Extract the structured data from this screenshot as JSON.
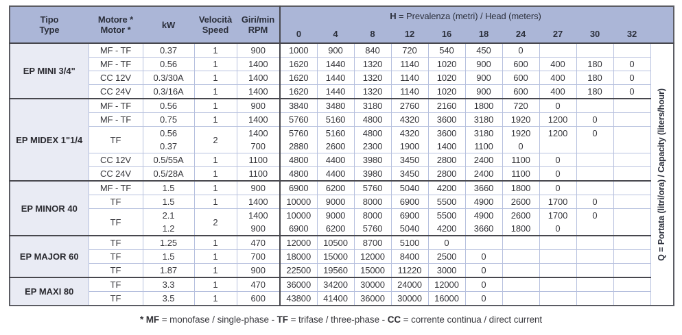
{
  "header": {
    "tipo": [
      "Tipo",
      "Type"
    ],
    "motore": [
      "Motore *",
      "Motor *"
    ],
    "kw": [
      "kW"
    ],
    "velocita": [
      "Velocità",
      "Speed"
    ],
    "giri": [
      "Giri/min",
      "RPM"
    ],
    "head_title_bold": "H",
    "head_title_rest": " = Prevalenza (metri) / Head (meters)",
    "head_cols": [
      "0",
      "4",
      "8",
      "12",
      "16",
      "18",
      "24",
      "27",
      "30",
      "32"
    ]
  },
  "q_axis": {
    "bold": "Q",
    "rest": " = Portata (litri/ora) / Capacity (liters/hour)"
  },
  "colors": {
    "header_bg": "#abb6d7",
    "section_bg": "#e9ebf4",
    "grid_light": "#b6c0de",
    "grid_dark": "#47474d",
    "outer_border": "#5b5c63"
  },
  "sections": [
    {
      "name": "EP MINI 3/4\"",
      "groups": [
        {
          "motor": "MF - TF",
          "speed": "1",
          "rows": [
            {
              "kw": "0.37",
              "rpm": "900",
              "q": [
                "1000",
                "900",
                "840",
                "720",
                "540",
                "450",
                "0",
                "",
                "",
                ""
              ]
            }
          ]
        },
        {
          "motor": "MF - TF",
          "speed": "1",
          "rows": [
            {
              "kw": "0.56",
              "rpm": "1400",
              "q": [
                "1620",
                "1440",
                "1320",
                "1140",
                "1020",
                "900",
                "600",
                "400",
                "180",
                "0"
              ]
            }
          ]
        },
        {
          "motor": "CC 12V",
          "speed": "1",
          "rows": [
            {
              "kw": "0.3/30A",
              "rpm": "1400",
              "q": [
                "1620",
                "1440",
                "1320",
                "1140",
                "1020",
                "900",
                "600",
                "400",
                "180",
                "0"
              ]
            }
          ]
        },
        {
          "motor": "CC 24V",
          "speed": "1",
          "rows": [
            {
              "kw": "0.3/16A",
              "rpm": "1400",
              "q": [
                "1620",
                "1440",
                "1320",
                "1140",
                "1020",
                "900",
                "600",
                "400",
                "180",
                "0"
              ]
            }
          ]
        }
      ]
    },
    {
      "name": "EP MIDEX 1\"1/4",
      "groups": [
        {
          "motor": "MF - TF",
          "speed": "1",
          "rows": [
            {
              "kw": "0.56",
              "rpm": "900",
              "q": [
                "3840",
                "3480",
                "3180",
                "2760",
                "2160",
                "1800",
                "720",
                "0",
                "",
                ""
              ]
            }
          ]
        },
        {
          "motor": "MF - TF",
          "speed": "1",
          "rows": [
            {
              "kw": "0.75",
              "rpm": "1400",
              "q": [
                "5760",
                "5160",
                "4800",
                "4320",
                "3600",
                "3180",
                "1920",
                "1200",
                "0",
                ""
              ]
            }
          ]
        },
        {
          "motor": "TF",
          "speed": "2",
          "rows": [
            {
              "kw": "0.56",
              "rpm": "1400",
              "q": [
                "5760",
                "5160",
                "4800",
                "4320",
                "3600",
                "3180",
                "1920",
                "1200",
                "0",
                ""
              ]
            },
            {
              "kw": "0.37",
              "rpm": "700",
              "q": [
                "2880",
                "2600",
                "2300",
                "1900",
                "1400",
                "1100",
                "0",
                "",
                "",
                ""
              ]
            }
          ]
        },
        {
          "motor": "CC 12V",
          "speed": "1",
          "rows": [
            {
              "kw": "0.5/55A",
              "rpm": "1100",
              "q": [
                "4800",
                "4400",
                "3980",
                "3450",
                "2800",
                "2400",
                "1100",
                "0",
                "",
                ""
              ]
            }
          ]
        },
        {
          "motor": "CC 24V",
          "speed": "1",
          "rows": [
            {
              "kw": "0.5/28A",
              "rpm": "1100",
              "q": [
                "4800",
                "4400",
                "3980",
                "3450",
                "2800",
                "2400",
                "1100",
                "0",
                "",
                ""
              ]
            }
          ]
        }
      ]
    },
    {
      "name": "EP MINOR 40",
      "groups": [
        {
          "motor": "MF - TF",
          "speed": "1",
          "rows": [
            {
              "kw": "1.5",
              "rpm": "900",
              "q": [
                "6900",
                "6200",
                "5760",
                "5040",
                "4200",
                "3660",
                "1800",
                "0",
                "",
                ""
              ]
            }
          ]
        },
        {
          "motor": "TF",
          "speed": "1",
          "rows": [
            {
              "kw": "1.5",
              "rpm": "1400",
              "q": [
                "10000",
                "9000",
                "8000",
                "6900",
                "5500",
                "4900",
                "2600",
                "1700",
                "0",
                ""
              ]
            }
          ]
        },
        {
          "motor": "TF",
          "speed": "2",
          "rows": [
            {
              "kw": "2.1",
              "rpm": "1400",
              "q": [
                "10000",
                "9000",
                "8000",
                "6900",
                "5500",
                "4900",
                "2600",
                "1700",
                "0",
                ""
              ]
            },
            {
              "kw": "1.2",
              "rpm": "900",
              "q": [
                "6900",
                "6200",
                "5760",
                "5040",
                "4200",
                "3660",
                "1800",
                "0",
                "",
                ""
              ]
            }
          ]
        }
      ]
    },
    {
      "name": "EP MAJOR 60",
      "groups": [
        {
          "motor": "TF",
          "speed": "1",
          "rows": [
            {
              "kw": "1.25",
              "rpm": "470",
              "q": [
                "12000",
                "10500",
                "8700",
                "5100",
                "0",
                "",
                "",
                "",
                "",
                ""
              ]
            }
          ]
        },
        {
          "motor": "TF",
          "speed": "1",
          "rows": [
            {
              "kw": "1.5",
              "rpm": "700",
              "q": [
                "18000",
                "15000",
                "12000",
                "8400",
                "2500",
                "0",
                "",
                "",
                "",
                ""
              ]
            }
          ]
        },
        {
          "motor": "TF",
          "speed": "1",
          "rows": [
            {
              "kw": "1.87",
              "rpm": "900",
              "q": [
                "22500",
                "19560",
                "15000",
                "11220",
                "3000",
                "0",
                "",
                "",
                "",
                ""
              ]
            }
          ]
        }
      ]
    },
    {
      "name": "EP MAXI 80",
      "groups": [
        {
          "motor": "TF",
          "speed": "1",
          "rows": [
            {
              "kw": "3.3",
              "rpm": "470",
              "q": [
                "36000",
                "34200",
                "30000",
                "24000",
                "12000",
                "0",
                "",
                "",
                "",
                ""
              ]
            }
          ]
        },
        {
          "motor": "TF",
          "speed": "1",
          "rows": [
            {
              "kw": "3.5",
              "rpm": "600",
              "q": [
                "43800",
                "41400",
                "36000",
                "30000",
                "16000",
                "0",
                "",
                "",
                "",
                ""
              ]
            }
          ]
        }
      ]
    }
  ],
  "footnote_segments": [
    {
      "b": "* MF"
    },
    {
      "t": " = monofase / single-phase - "
    },
    {
      "b": "TF"
    },
    {
      "t": " = trifase / three-phase - "
    },
    {
      "b": "CC"
    },
    {
      "t": " = corrente continua / direct current"
    }
  ]
}
